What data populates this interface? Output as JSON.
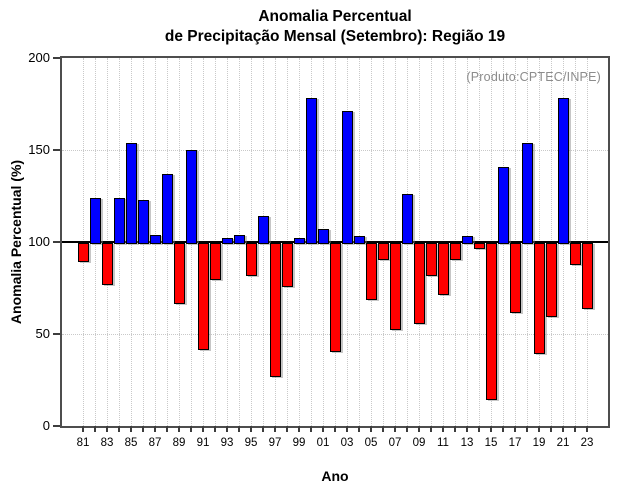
{
  "title": {
    "line1": "Anomalia Percentual",
    "line2": "de Precipitação Mensal (Setembro): Região 19"
  },
  "annotation": "(Produto:CPTEC/INPE)",
  "axes": {
    "y_label": "Anomalia Percentual (%)",
    "x_label": "Ano",
    "y_ticks": [
      0,
      50,
      100,
      150,
      200
    ],
    "y_range": [
      0,
      200
    ],
    "baseline": 100
  },
  "chart_data": {
    "type": "bar",
    "title": "Anomalia Percentual de Precipitação Mensal (Setembro): Região 19",
    "xlabel": "Ano",
    "ylabel": "Anomalia Percentual (%)",
    "ylim": [
      0,
      200
    ],
    "baseline": 100,
    "grid": "dotted",
    "legend_position": "none",
    "colors": {
      "above_baseline": "#0000ff",
      "below_baseline": "#ff0000"
    },
    "categories": [
      "81",
      "82",
      "83",
      "84",
      "85",
      "86",
      "87",
      "88",
      "89",
      "90",
      "91",
      "92",
      "93",
      "94",
      "95",
      "96",
      "97",
      "98",
      "99",
      "00",
      "01",
      "02",
      "03",
      "04",
      "05",
      "06",
      "07",
      "08",
      "09",
      "10",
      "11",
      "12",
      "13",
      "14",
      "15",
      "16",
      "17",
      "18",
      "19",
      "20",
      "21",
      "22",
      "23"
    ],
    "values": [
      91,
      124,
      78,
      124,
      154,
      123,
      104,
      137,
      68,
      150,
      43,
      81,
      102,
      104,
      83,
      114,
      28,
      77,
      102,
      178,
      107,
      42,
      171,
      103,
      70,
      92,
      54,
      126,
      57,
      83,
      73,
      92,
      103,
      98,
      16,
      141,
      63,
      154,
      41,
      61,
      178,
      89,
      65
    ],
    "x_tick_label_every": 2
  }
}
